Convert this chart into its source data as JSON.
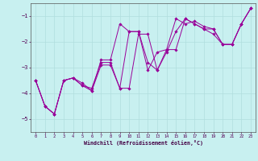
{
  "xlabel": "Windchill (Refroidissement éolien,°C)",
  "background_color": "#c8f0f0",
  "grid_color": "#b0dede",
  "line_color": "#990099",
  "xlim": [
    -0.5,
    23.5
  ],
  "ylim": [
    -5.5,
    -0.5
  ],
  "yticks": [
    -5,
    -4,
    -3,
    -2,
    -1
  ],
  "xticks": [
    0,
    1,
    2,
    3,
    4,
    5,
    6,
    7,
    8,
    9,
    10,
    11,
    12,
    13,
    14,
    15,
    16,
    17,
    18,
    19,
    20,
    21,
    22,
    23
  ],
  "series": [
    {
      "x": [
        0,
        1,
        2,
        3,
        4,
        5,
        6,
        7,
        8,
        9,
        10,
        11,
        12,
        13,
        14,
        15,
        16,
        17,
        18,
        19,
        20,
        21,
        22,
        23
      ],
      "y": [
        -3.5,
        -4.5,
        -4.8,
        -3.5,
        -3.4,
        -3.6,
        -3.9,
        -2.7,
        -2.7,
        -1.3,
        -1.6,
        -1.6,
        -3.1,
        -2.4,
        -2.3,
        -1.1,
        -1.3,
        -1.2,
        -1.4,
        -1.5,
        -2.1,
        -2.1,
        -1.3,
        -0.7
      ]
    },
    {
      "x": [
        0,
        1,
        2,
        3,
        4,
        5,
        6,
        7,
        8,
        9,
        10,
        11,
        12,
        13,
        14,
        15,
        16,
        17,
        18,
        19,
        20,
        21,
        22,
        23
      ],
      "y": [
        -3.5,
        -4.5,
        -4.8,
        -3.5,
        -3.4,
        -3.7,
        -3.9,
        -2.9,
        -2.9,
        -3.8,
        -3.8,
        -1.7,
        -1.7,
        -3.1,
        -2.4,
        -1.6,
        -1.1,
        -1.3,
        -1.5,
        -1.7,
        -2.1,
        -2.1,
        -1.3,
        -0.7
      ]
    },
    {
      "x": [
        0,
        1,
        2,
        3,
        4,
        5,
        6,
        7,
        8,
        9,
        10,
        11,
        12,
        13,
        14,
        15,
        16,
        17,
        18,
        19,
        20,
        21,
        22,
        23
      ],
      "y": [
        -3.5,
        -4.5,
        -4.8,
        -3.5,
        -3.4,
        -3.7,
        -3.8,
        -2.8,
        -2.8,
        -3.8,
        -1.6,
        -1.6,
        -2.8,
        -3.1,
        -2.3,
        -2.3,
        -1.1,
        -1.3,
        -1.5,
        -1.5,
        -2.1,
        -2.1,
        -1.3,
        -0.7
      ]
    }
  ]
}
